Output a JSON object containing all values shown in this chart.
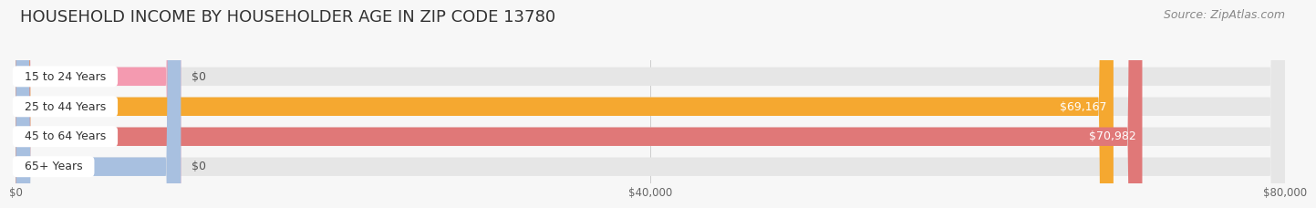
{
  "title": "HOUSEHOLD INCOME BY HOUSEHOLDER AGE IN ZIP CODE 13780",
  "source": "Source: ZipAtlas.com",
  "categories": [
    "15 to 24 Years",
    "25 to 44 Years",
    "45 to 64 Years",
    "65+ Years"
  ],
  "values": [
    0,
    69167,
    70982,
    0
  ],
  "bar_colors": [
    "#f49ab0",
    "#f5a830",
    "#e07878",
    "#a8c0e0"
  ],
  "xlim_max": 80000,
  "xtick_labels": [
    "$0",
    "$40,000",
    "$80,000"
  ],
  "background_color": "#f7f7f7",
  "bar_bg_color": "#e6e6e6",
  "title_fontsize": 13,
  "source_fontsize": 9,
  "bar_label_fontsize": 9,
  "cat_label_fontsize": 9
}
